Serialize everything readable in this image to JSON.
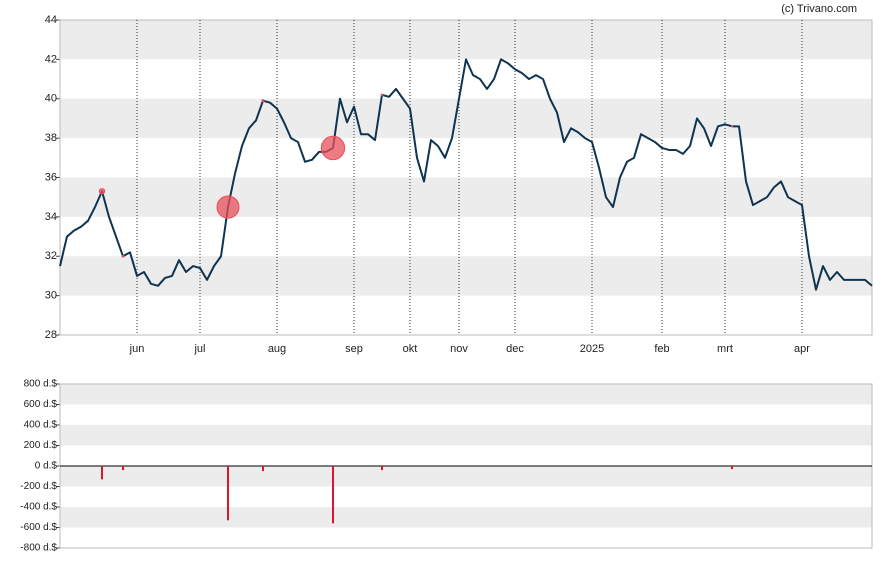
{
  "credit": "(c) Trivano.com",
  "chart_data": [
    {
      "type": "line",
      "categories": [
        null,
        null,
        null,
        null,
        null,
        null,
        null,
        null,
        null,
        null,
        null,
        "jun",
        null,
        null,
        null,
        null,
        null,
        null,
        null,
        null,
        "jul",
        null,
        null,
        null,
        null,
        null,
        null,
        null,
        null,
        null,
        null,
        "aug",
        null,
        null,
        null,
        null,
        null,
        null,
        null,
        null,
        null,
        null,
        "sep",
        null,
        null,
        null,
        null,
        null,
        null,
        null,
        "okt",
        null,
        null,
        null,
        null,
        null,
        null,
        "nov",
        null,
        null,
        null,
        null,
        null,
        null,
        null,
        "dec",
        null,
        null,
        null,
        null,
        null,
        null,
        null,
        null,
        null,
        null,
        "2025",
        null,
        null,
        null,
        null,
        null,
        null,
        null,
        null,
        null,
        "feb",
        null,
        null,
        null,
        null,
        null,
        null,
        null,
        null,
        "mrt",
        null,
        null,
        null,
        null,
        null,
        null,
        null,
        null,
        null,
        null,
        "apr",
        null,
        null,
        null,
        null,
        null,
        null,
        null,
        null,
        null,
        null
      ],
      "series": [
        {
          "color": "#0f3350",
          "values": [
            31.5,
            33.0,
            33.3,
            33.5,
            33.8,
            34.5,
            35.3,
            34.0,
            33.0,
            32.0,
            32.2,
            31.0,
            31.2,
            30.6,
            30.5,
            30.9,
            31.0,
            31.8,
            31.2,
            31.5,
            31.4,
            30.8,
            31.5,
            32.0,
            34.5,
            36.2,
            37.6,
            38.5,
            38.9,
            39.9,
            39.8,
            39.5,
            38.8,
            38.0,
            37.8,
            36.8,
            36.9,
            37.3,
            37.3,
            37.5,
            40.0,
            38.8,
            39.6,
            38.2,
            38.2,
            37.9,
            40.2,
            40.1,
            40.5,
            40.0,
            39.5,
            37.0,
            35.8,
            37.9,
            37.6,
            37.0,
            38.0,
            40.0,
            42.0,
            41.2,
            41.0,
            40.5,
            41.0,
            42.0,
            41.8,
            41.5,
            41.3,
            41.0,
            41.2,
            41.0,
            40.0,
            39.3,
            37.8,
            38.5,
            38.3,
            38.0,
            37.8,
            36.5,
            35.0,
            34.5,
            36.0,
            36.8,
            37.0,
            38.2,
            38.0,
            37.8,
            37.5,
            37.4,
            37.4,
            37.2,
            37.6,
            39.0,
            38.5,
            37.6,
            38.6,
            38.7,
            38.6,
            38.6,
            35.8,
            34.6,
            34.8,
            35.0,
            35.5,
            35.8,
            35.0,
            34.8,
            34.6,
            32.0,
            30.3,
            31.5,
            30.8,
            31.2,
            30.8,
            30.8,
            30.8,
            30.8,
            30.5
          ]
        }
      ],
      "marker_color": "#e8505b",
      "ylim": [
        28,
        44
      ],
      "yticks": [
        28,
        30,
        32,
        34,
        36,
        38,
        40,
        42,
        44
      ],
      "grid": true
    },
    {
      "type": "bar",
      "color": "#e0132c",
      "values": [
        null,
        null,
        null,
        null,
        null,
        null,
        -130,
        null,
        null,
        -40,
        null,
        null,
        null,
        null,
        null,
        null,
        null,
        null,
        null,
        null,
        null,
        null,
        null,
        null,
        -530,
        null,
        null,
        null,
        null,
        -50,
        null,
        null,
        null,
        null,
        null,
        null,
        null,
        null,
        null,
        -560,
        null,
        null,
        null,
        null,
        null,
        null,
        -40,
        null,
        null,
        null,
        null,
        null,
        null,
        null,
        null,
        null,
        null,
        null,
        null,
        null,
        null,
        null,
        null,
        null,
        null,
        null,
        null,
        null,
        null,
        null,
        null,
        null,
        null,
        null,
        null,
        null,
        null,
        null,
        null,
        null,
        null,
        null,
        null,
        null,
        null,
        null,
        null,
        null,
        null,
        null,
        null,
        null,
        null,
        null,
        null,
        null,
        -30,
        null,
        null,
        null,
        null,
        null,
        null,
        null,
        null,
        null,
        null,
        null,
        null,
        null,
        null,
        null,
        null,
        null,
        null,
        null,
        null
      ],
      "ylim": [
        -800,
        800
      ],
      "yticks": [
        {
          "value": -800,
          "label": "-800 d.$"
        },
        {
          "value": -600,
          "label": "-600 d.$"
        },
        {
          "value": -400,
          "label": "-400 d.$"
        },
        {
          "value": -200,
          "label": "-200 d.$"
        },
        {
          "value": 0,
          "label": "0 d.$"
        },
        {
          "value": 200,
          "label": "200 d.$"
        },
        {
          "value": 400,
          "label": "400 d.$"
        },
        {
          "value": 600,
          "label": "600 d.$"
        },
        {
          "value": 800,
          "label": "800 d.$"
        }
      ],
      "grid": true
    }
  ]
}
